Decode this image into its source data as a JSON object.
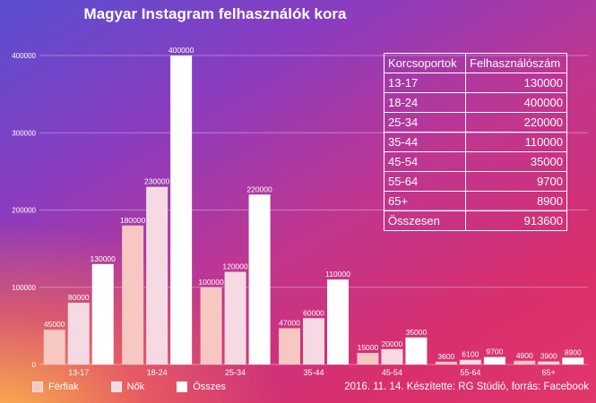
{
  "chart_data": {
    "type": "bar",
    "title": "Magyar Instagram felhasználók kora",
    "categories": [
      "13-17",
      "18-24",
      "25-34",
      "35-44",
      "45-54",
      "55-64",
      "65+"
    ],
    "series": [
      {
        "name": "Férfiak",
        "values": [
          45000,
          180000,
          100000,
          47000,
          15000,
          3600,
          4900
        ],
        "color": "#f7c7c2"
      },
      {
        "name": "Nők",
        "values": [
          80000,
          230000,
          120000,
          60000,
          20000,
          6100,
          3900
        ],
        "color": "#f5d9e3"
      },
      {
        "name": "Összes",
        "values": [
          130000,
          400000,
          220000,
          110000,
          35000,
          9700,
          8900
        ],
        "color": "#ffffff"
      }
    ],
    "ylim": [
      0,
      400000
    ],
    "yticks": [
      0,
      100000,
      200000,
      300000,
      400000
    ],
    "grid": true,
    "legend": "bottom-left"
  },
  "table": {
    "headers": [
      "Korcsoportok",
      "Felhasználószám"
    ],
    "rows": [
      [
        "13-17",
        "130000"
      ],
      [
        "18-24",
        "400000"
      ],
      [
        "25-34",
        "220000"
      ],
      [
        "35-44",
        "110000"
      ],
      [
        "45-54",
        "35000"
      ],
      [
        "55-64",
        "9700"
      ],
      [
        "65+",
        "8900"
      ],
      [
        "Összesen",
        "913600"
      ]
    ]
  },
  "legend": {
    "items": [
      "Férfiak",
      "Nők",
      "Összes"
    ]
  },
  "footer": {
    "note": "2016. 11. 14. Készítette: RG Stúdió, forrás: Facebook"
  }
}
